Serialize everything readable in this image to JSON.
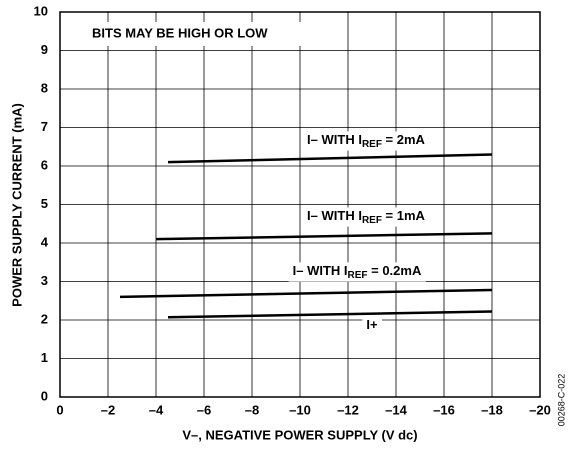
{
  "chart_data": {
    "type": "line",
    "xlabel": "V–, NEGATIVE POWER SUPPLY (V dc)",
    "ylabel": "POWER SUPPLY CURRENT (mA)",
    "annotations": [
      "BITS MAY BE HIGH OR LOW",
      "00268-C-022"
    ],
    "xlim": [
      0,
      -20
    ],
    "ylim": [
      0,
      10
    ],
    "xticks": [
      0,
      {
        "value": -2,
        "label": "–2"
      },
      {
        "value": -4,
        "label": "–4"
      },
      {
        "value": -6,
        "label": "–6"
      },
      {
        "value": -8,
        "label": "–8"
      },
      {
        "value": -10,
        "label": "–10"
      },
      {
        "value": -12,
        "label": "–12"
      },
      {
        "value": -14,
        "label": "–14"
      },
      {
        "value": -16,
        "label": "–16"
      },
      {
        "value": -18,
        "label": "–18"
      },
      {
        "value": -20,
        "label": "–20"
      }
    ],
    "yticks": [
      0,
      1,
      2,
      3,
      4,
      5,
      6,
      7,
      8,
      9,
      10
    ],
    "grid": true,
    "series": [
      {
        "label": [
          "I– WITH I",
          "REF",
          " = 2mA"
        ],
        "color": "#000000",
        "x": [
          -4.5,
          -18
        ],
        "values": [
          6.1,
          6.3
        ]
      },
      {
        "label": [
          "I– WITH I",
          "REF",
          " = 1mA"
        ],
        "color": "#000000",
        "x": [
          -4,
          -18
        ],
        "values": [
          4.1,
          4.25
        ]
      },
      {
        "label": [
          "I– WITH I",
          "REF",
          " = 0.2mA"
        ],
        "color": "#000000",
        "x": [
          -2.5,
          -18
        ],
        "values": [
          2.6,
          2.78
        ]
      },
      {
        "label": [
          "I+"
        ],
        "color": "#000000",
        "x": [
          -4.5,
          -18
        ],
        "values": [
          2.07,
          2.22
        ]
      }
    ]
  }
}
